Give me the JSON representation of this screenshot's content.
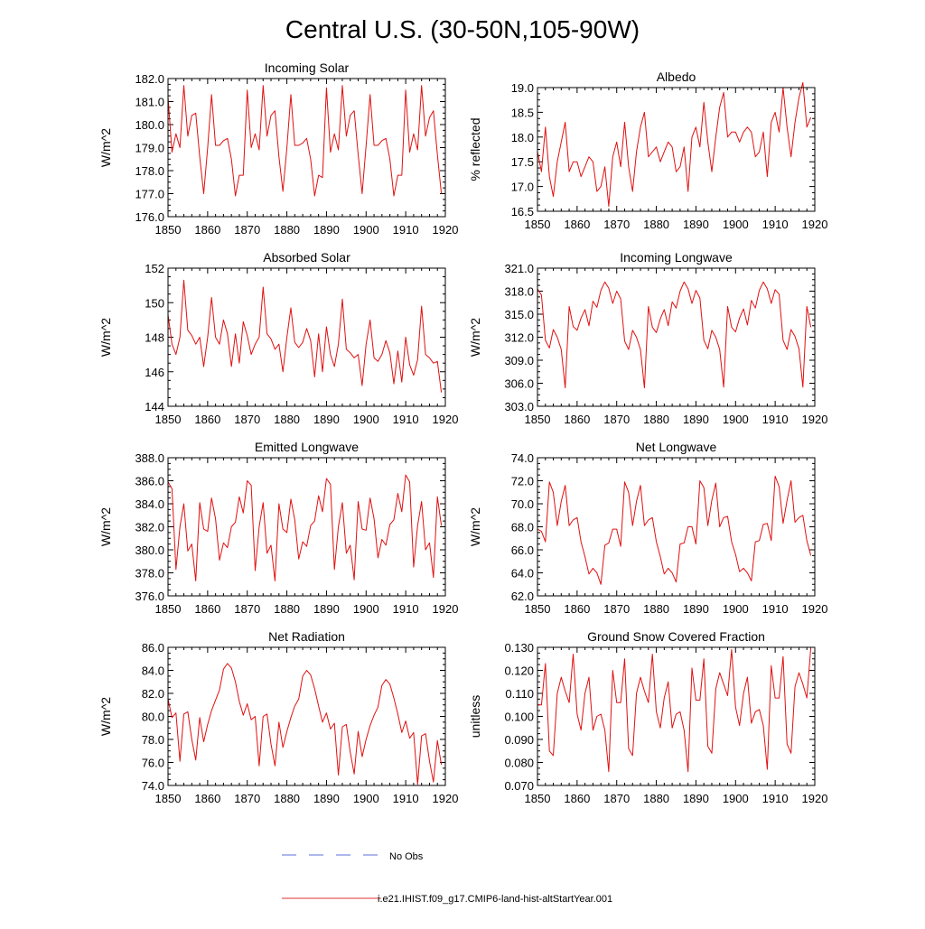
{
  "title": "Central U.S. (30-50N,105-90W)",
  "legend": {
    "items": [
      {
        "label": "No Obs",
        "color": "#5a6fd8",
        "dash": true
      },
      {
        "label": "i.e21.IHIST.f09_g17.CMIP6-land-hist-altStartYear.001",
        "color": "#e03030",
        "dash": false
      }
    ]
  },
  "colors": {
    "series": "#e01010",
    "axis": "#000000"
  },
  "chart_data": [
    {
      "type": "line",
      "title": "Incoming Solar",
      "ylabel": "W/m^2",
      "xlim": [
        1850,
        1920
      ],
      "ylim": [
        176,
        182
      ],
      "xticks": [
        1850,
        1860,
        1870,
        1880,
        1890,
        1900,
        1910,
        1920
      ],
      "yticks": [
        176,
        177,
        178,
        179,
        180,
        181,
        182
      ],
      "ytick_labels": [
        "176.0",
        "177.0",
        "178.0",
        "179.0",
        "180.0",
        "181.0",
        "182.0"
      ],
      "series": [
        {
          "x_start": 1850,
          "values": [
            181.2,
            178.8,
            179.6,
            179.0,
            181.7,
            179.5,
            180.4,
            180.5,
            178.6,
            177.0,
            179.0,
            181.3,
            179.1,
            179.1,
            179.3,
            179.4,
            178.5,
            176.9,
            177.8,
            177.8,
            181.5,
            179.0,
            179.6,
            178.9,
            181.7,
            179.5,
            180.4,
            180.6,
            178.6,
            177.1,
            179.0,
            181.3,
            179.1,
            179.1,
            179.2,
            179.4,
            178.5,
            176.9,
            177.8,
            177.7,
            181.6,
            178.8,
            179.6,
            178.9,
            181.7,
            179.5,
            180.4,
            180.6,
            178.7,
            177.0,
            179.1,
            181.3,
            179.1,
            179.1,
            179.3,
            179.4,
            178.5,
            176.9,
            177.8,
            177.8,
            181.5,
            178.8,
            179.6,
            178.9,
            181.7,
            179.5,
            180.3,
            180.6,
            178.7,
            177.0
          ]
        }
      ]
    },
    {
      "type": "line",
      "title": "Albedo",
      "ylabel": "% reflected",
      "xlim": [
        1850,
        1920
      ],
      "ylim": [
        16.5,
        19.0
      ],
      "xticks": [
        1850,
        1860,
        1870,
        1880,
        1890,
        1900,
        1910,
        1920
      ],
      "yticks": [
        16.5,
        17.0,
        17.5,
        18.0,
        18.5,
        19.0
      ],
      "ytick_labels": [
        "16.5",
        "17.0",
        "17.5",
        "18.0",
        "18.5",
        "19.0"
      ],
      "series": [
        {
          "x_start": 1850,
          "values": [
            17.7,
            17.3,
            18.2,
            17.2,
            16.8,
            17.5,
            17.9,
            18.3,
            17.3,
            17.5,
            17.5,
            17.2,
            17.4,
            17.6,
            17.5,
            16.9,
            17.0,
            17.4,
            16.6,
            17.6,
            17.9,
            17.4,
            18.3,
            17.4,
            16.9,
            17.7,
            18.2,
            18.5,
            17.6,
            17.7,
            17.8,
            17.5,
            17.7,
            17.9,
            17.8,
            17.3,
            17.4,
            17.8,
            16.9,
            18.0,
            18.2,
            17.8,
            18.7,
            17.9,
            17.3,
            18.0,
            18.6,
            18.9,
            18.0,
            18.1,
            18.1,
            17.9,
            18.1,
            18.2,
            18.1,
            17.6,
            17.7,
            18.1,
            17.2,
            18.3,
            18.5,
            18.1,
            19.0,
            18.2,
            17.6,
            18.3,
            18.8,
            19.1,
            18.2,
            18.4
          ]
        }
      ]
    },
    {
      "type": "line",
      "title": "Absorbed Solar",
      "ylabel": "W/m^2",
      "xlim": [
        1850,
        1920
      ],
      "ylim": [
        144,
        152
      ],
      "xticks": [
        1850,
        1860,
        1870,
        1880,
        1890,
        1900,
        1910,
        1920
      ],
      "yticks": [
        144,
        146,
        148,
        150,
        152
      ],
      "ytick_labels": [
        "144",
        "146",
        "148",
        "150",
        "152"
      ],
      "series": [
        {
          "x_start": 1850,
          "values": [
            149.3,
            147.6,
            147.0,
            148.0,
            151.3,
            148.4,
            148.1,
            147.6,
            148.0,
            146.3,
            148.0,
            150.3,
            148.0,
            147.6,
            149.0,
            148.2,
            146.3,
            148.2,
            146.5,
            148.9,
            148.1,
            147.0,
            147.6,
            148.0,
            150.9,
            148.2,
            147.9,
            147.3,
            147.6,
            146.0,
            148.0,
            149.7,
            147.7,
            147.4,
            147.7,
            148.5,
            147.8,
            145.7,
            148.2,
            146.0,
            148.6,
            147.0,
            146.3,
            147.6,
            150.2,
            147.3,
            147.1,
            146.8,
            147.0,
            145.2,
            147.6,
            149.0,
            146.8,
            146.6,
            147.0,
            147.8,
            147.1,
            145.3,
            147.2,
            145.4,
            148.0,
            146.4,
            145.8,
            146.7,
            149.8,
            147.0,
            146.8,
            146.5,
            146.6,
            144.8
          ]
        }
      ]
    },
    {
      "type": "line",
      "title": "Incoming Longwave",
      "ylabel": "W/m^2",
      "xlim": [
        1850,
        1920
      ],
      "ylim": [
        303,
        321
      ],
      "xticks": [
        1850,
        1860,
        1870,
        1880,
        1890,
        1900,
        1910,
        1920
      ],
      "yticks": [
        303,
        306,
        309,
        312,
        315,
        318,
        321
      ],
      "ytick_labels": [
        "303.0",
        "306.0",
        "309.0",
        "312.0",
        "315.0",
        "318.0",
        "321.0"
      ],
      "series": [
        {
          "x_start": 1850,
          "values": [
            318.3,
            317.5,
            311.6,
            310.6,
            313.0,
            312.0,
            310.4,
            305.4,
            316.0,
            313.4,
            312.9,
            314.5,
            315.6,
            313.5,
            316.7,
            315.9,
            318.1,
            319.2,
            318.4,
            316.4,
            318.0,
            317.0,
            311.5,
            310.4,
            312.9,
            312.0,
            310.4,
            305.4,
            316.0,
            313.3,
            312.6,
            314.4,
            315.6,
            313.5,
            316.6,
            315.8,
            318.0,
            319.2,
            318.3,
            316.4,
            318.1,
            317.1,
            311.6,
            310.5,
            312.9,
            312.0,
            310.4,
            305.5,
            316.0,
            313.3,
            312.7,
            314.5,
            315.7,
            313.6,
            316.8,
            315.8,
            318.1,
            319.2,
            318.3,
            316.4,
            318.2,
            317.6,
            311.6,
            310.4,
            313.0,
            312.1,
            310.5,
            305.5,
            316.0,
            313.3
          ]
        }
      ]
    },
    {
      "type": "line",
      "title": "Emitted Longwave",
      "ylabel": "W/m^2",
      "xlim": [
        1850,
        1920
      ],
      "ylim": [
        376,
        388
      ],
      "xticks": [
        1850,
        1860,
        1870,
        1880,
        1890,
        1900,
        1910,
        1920
      ],
      "yticks": [
        376,
        378,
        380,
        382,
        384,
        386,
        388
      ],
      "ytick_labels": [
        "376.0",
        "378.0",
        "380.0",
        "382.0",
        "384.0",
        "386.0",
        "388.0"
      ],
      "series": [
        {
          "x_start": 1850,
          "values": [
            385.9,
            385.3,
            378.3,
            382.0,
            384.0,
            379.9,
            380.5,
            377.3,
            384.1,
            381.8,
            381.6,
            384.5,
            382.7,
            379.1,
            380.6,
            380.2,
            382.0,
            382.4,
            384.6,
            383.2,
            386.0,
            385.6,
            378.2,
            382.0,
            384.1,
            379.7,
            380.4,
            377.3,
            384.0,
            381.8,
            381.5,
            384.4,
            382.6,
            379.2,
            380.7,
            380.3,
            382.1,
            382.5,
            384.7,
            383.3,
            386.2,
            385.7,
            378.3,
            382.0,
            384.1,
            379.7,
            380.4,
            377.4,
            384.2,
            381.8,
            381.7,
            384.5,
            382.7,
            379.3,
            380.9,
            380.4,
            382.2,
            382.6,
            384.9,
            383.3,
            386.5,
            385.9,
            378.5,
            382.1,
            384.2,
            380.0,
            380.6,
            377.6,
            384.6,
            382.1
          ]
        }
      ]
    },
    {
      "type": "line",
      "title": "Net Longwave",
      "ylabel": "W/m^2",
      "xlim": [
        1850,
        1920
      ],
      "ylim": [
        62,
        74
      ],
      "xticks": [
        1850,
        1860,
        1870,
        1880,
        1890,
        1900,
        1910,
        1920
      ],
      "yticks": [
        62,
        64,
        66,
        68,
        70,
        72,
        74
      ],
      "ytick_labels": [
        "62.0",
        "64.0",
        "66.0",
        "68.0",
        "70.0",
        "72.0",
        "74.0"
      ],
      "series": [
        {
          "x_start": 1850,
          "values": [
            67.8,
            67.6,
            66.7,
            71.9,
            71.0,
            68.1,
            70.2,
            71.6,
            68.1,
            68.6,
            68.8,
            66.7,
            65.4,
            63.9,
            64.4,
            64.0,
            63.0,
            66.4,
            66.6,
            67.8,
            67.8,
            66.3,
            71.9,
            71.0,
            68.1,
            70.2,
            71.6,
            68.1,
            68.6,
            68.8,
            66.7,
            65.4,
            63.9,
            64.4,
            64.0,
            63.2,
            66.5,
            66.6,
            68.0,
            68.0,
            66.5,
            72.0,
            71.4,
            68.1,
            70.3,
            71.8,
            68.0,
            68.8,
            68.9,
            66.7,
            65.6,
            64.1,
            64.4,
            64.0,
            63.3,
            66.7,
            66.8,
            68.2,
            68.3,
            66.8,
            72.4,
            71.5,
            68.3,
            70.3,
            72.0,
            68.4,
            68.8,
            69.0,
            66.8,
            65.5
          ]
        }
      ]
    },
    {
      "type": "line",
      "title": "Net Radiation",
      "ylabel": "W/m^2",
      "xlim": [
        1850,
        1920
      ],
      "ylim": [
        74,
        86
      ],
      "xticks": [
        1850,
        1860,
        1870,
        1880,
        1890,
        1900,
        1910,
        1920
      ],
      "yticks": [
        74,
        76,
        78,
        80,
        82,
        84,
        86
      ],
      "ytick_labels": [
        "74.0",
        "76.0",
        "78.0",
        "80.0",
        "82.0",
        "84.0",
        "86.0"
      ],
      "series": [
        {
          "x_start": 1850,
          "values": [
            81.5,
            79.9,
            80.3,
            76.1,
            80.2,
            80.4,
            78.0,
            76.2,
            79.9,
            77.8,
            79.3,
            80.5,
            81.4,
            82.3,
            84.1,
            84.6,
            84.2,
            83.0,
            81.3,
            80.1,
            81.1,
            79.7,
            80.0,
            75.7,
            80.0,
            80.2,
            77.6,
            75.7,
            79.5,
            77.3,
            78.7,
            79.9,
            80.9,
            81.5,
            83.5,
            84.0,
            83.6,
            82.4,
            80.9,
            79.5,
            80.3,
            78.9,
            79.4,
            74.9,
            79.1,
            79.3,
            76.9,
            75.0,
            78.7,
            76.5,
            78.0,
            79.2,
            80.1,
            80.8,
            82.7,
            83.2,
            82.8,
            81.6,
            80.2,
            78.6,
            79.6,
            78.1,
            78.6,
            74.1,
            78.3,
            78.5,
            76.1,
            74.3,
            77.9,
            75.8
          ]
        }
      ]
    },
    {
      "type": "line",
      "title": "Ground Snow Covered Fraction",
      "ylabel": "unitless",
      "xlim": [
        1850,
        1920
      ],
      "ylim": [
        0.07,
        0.13
      ],
      "xticks": [
        1850,
        1860,
        1870,
        1880,
        1890,
        1900,
        1910,
        1920
      ],
      "yticks": [
        0.07,
        0.08,
        0.09,
        0.1,
        0.11,
        0.12,
        0.13
      ],
      "ytick_labels": [
        "0.070",
        "0.080",
        "0.090",
        "0.100",
        "0.110",
        "0.120",
        "0.130"
      ],
      "series": [
        {
          "x_start": 1850,
          "values": [
            0.105,
            0.105,
            0.123,
            0.085,
            0.083,
            0.11,
            0.117,
            0.111,
            0.106,
            0.127,
            0.101,
            0.094,
            0.11,
            0.117,
            0.094,
            0.1,
            0.101,
            0.094,
            0.076,
            0.12,
            0.106,
            0.106,
            0.125,
            0.086,
            0.083,
            0.11,
            0.117,
            0.111,
            0.106,
            0.127,
            0.102,
            0.095,
            0.108,
            0.115,
            0.095,
            0.101,
            0.102,
            0.094,
            0.076,
            0.121,
            0.107,
            0.107,
            0.125,
            0.087,
            0.084,
            0.112,
            0.119,
            0.114,
            0.109,
            0.129,
            0.104,
            0.096,
            0.11,
            0.117,
            0.097,
            0.102,
            0.103,
            0.096,
            0.077,
            0.122,
            0.108,
            0.108,
            0.126,
            0.088,
            0.084,
            0.113,
            0.119,
            0.114,
            0.108,
            0.13
          ]
        }
      ]
    }
  ]
}
